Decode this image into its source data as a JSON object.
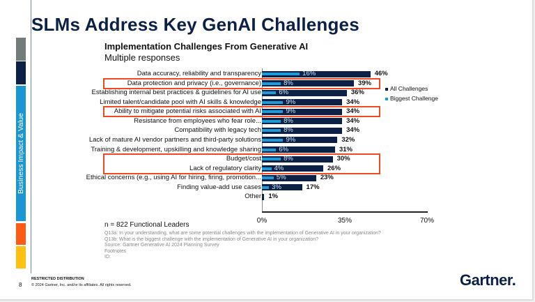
{
  "slide": {
    "title": "SLMs Address Key GenAI Challenges",
    "section_label": "Business Impact & Value",
    "section_colors": [
      "#737b7b",
      "#0d2046",
      "#1a96d4",
      "#ff5a14",
      "#ffc012"
    ],
    "sample": "n = 822 Functional Leaders",
    "notes": [
      "Q13a: In your understanding, what are some potential challenges with the implementation of Generative AI in your organization?",
      "Q13b: What is the biggest challenge with the implementation of Generative AI in your organization?",
      "Source: Gartner Generative AI 2024 Planning Survey",
      "Footnotes",
      "ID:"
    ],
    "restricted": "RESTRICTED DISTRIBUTION",
    "copyright": "© 2024 Gartner, Inc. and/or its affiliates. All rights reserved.",
    "page_number": "8",
    "logo_text": "Gartner."
  },
  "chart_data": {
    "type": "bar",
    "orientation": "horizontal",
    "title": "Implementation Challenges From Generative AI",
    "subtitle": "Multiple responses",
    "categories": [
      "Data accuracy, reliability and transparency",
      "Data protection and privacy (i.e., governance)",
      "Establishing internal best practices & guidelines for AI use",
      "Limited talent/candidate pool with AI skills & knowledge",
      "Ability to mitigate potential risks associated with AI",
      "Resistance from employees who fear role...",
      "Compatibility with legacy tech",
      "Lack of mature AI vendor partners and third-party solutions",
      "Training & development, upskilling and knowledge sharing",
      "Budget/cost",
      "Lack of regulatory clarity",
      "Ethical concerns (e.g., using AI for hiring, firing, promotion...",
      "Finding value-add use cases",
      "Other"
    ],
    "series": [
      {
        "name": "All Challenges",
        "color": "#0d2046",
        "values": [
          46,
          39,
          36,
          34,
          34,
          34,
          34,
          32,
          31,
          30,
          26,
          23,
          17,
          1
        ]
      },
      {
        "name": "Biggest Challenge",
        "color": "#1e9bd7",
        "values": [
          16,
          8,
          6,
          9,
          9,
          8,
          8,
          9,
          6,
          8,
          4,
          5,
          3,
          null
        ]
      }
    ],
    "xlim": [
      0,
      70
    ],
    "xticks": [
      "0%",
      "35%",
      "70%"
    ],
    "legend": "right",
    "highlighted_categories": [
      [
        1
      ],
      [
        4
      ],
      [
        9,
        10
      ]
    ],
    "highlight_color": "#f04a23"
  }
}
